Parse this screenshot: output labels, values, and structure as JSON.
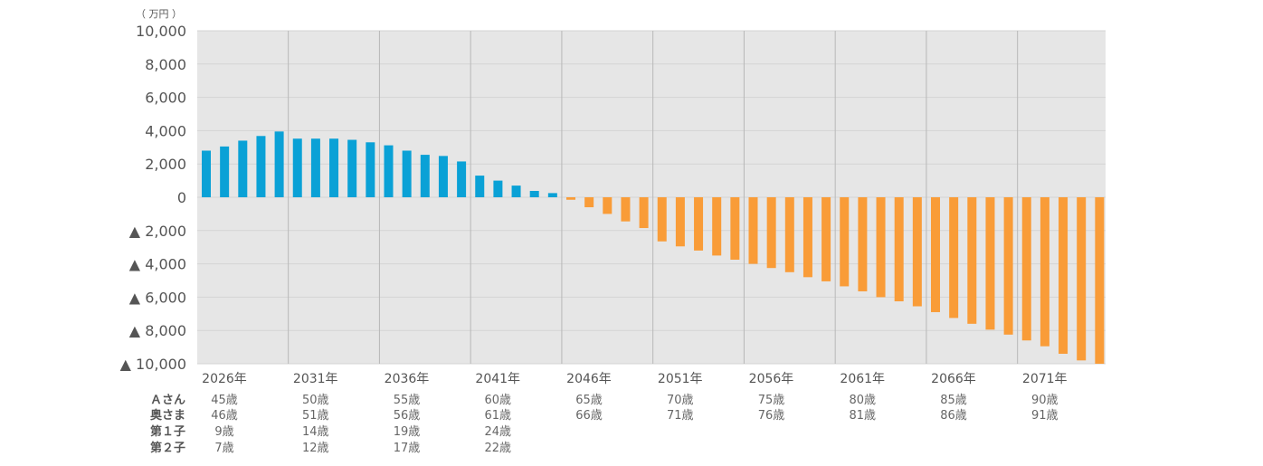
{
  "chart_data": {
    "type": "bar",
    "unit_label": "（ 万円 ）",
    "ylim": [
      -10000,
      10000
    ],
    "y_ticks": [
      {
        "value": 10000,
        "label": "10,000"
      },
      {
        "value": 8000,
        "label": "8,000"
      },
      {
        "value": 6000,
        "label": "6,000"
      },
      {
        "value": 4000,
        "label": "4,000"
      },
      {
        "value": 2000,
        "label": "2,000"
      },
      {
        "value": 0,
        "label": "0"
      },
      {
        "value": -2000,
        "label": "▲ 2,000"
      },
      {
        "value": -4000,
        "label": "▲ 4,000"
      },
      {
        "value": -6000,
        "label": "▲ 6,000"
      },
      {
        "value": -8000,
        "label": "▲ 8,000"
      },
      {
        "value": -10000,
        "label": "▲ 10,000"
      }
    ],
    "years": [
      2026,
      2027,
      2028,
      2029,
      2030,
      2031,
      2032,
      2033,
      2034,
      2035,
      2036,
      2037,
      2038,
      2039,
      2040,
      2041,
      2042,
      2043,
      2044,
      2045,
      2046,
      2047,
      2048,
      2049,
      2050,
      2051,
      2052,
      2053,
      2054,
      2055,
      2056,
      2057,
      2058,
      2059,
      2060,
      2061,
      2062,
      2063,
      2064,
      2065,
      2066,
      2067,
      2068,
      2069,
      2070,
      2071,
      2072,
      2073,
      2074,
      2075
    ],
    "values": [
      2800,
      3050,
      3400,
      3680,
      3950,
      3520,
      3520,
      3520,
      3450,
      3300,
      3120,
      2800,
      2550,
      2480,
      2150,
      1300,
      1000,
      700,
      380,
      250,
      -150,
      -600,
      -1000,
      -1450,
      -1850,
      -2650,
      -2950,
      -3200,
      -3500,
      -3750,
      -4000,
      -4250,
      -4500,
      -4800,
      -5050,
      -5350,
      -5650,
      -6000,
      -6250,
      -6550,
      -6900,
      -7250,
      -7600,
      -7950,
      -8250,
      -8600,
      -8950,
      -9400,
      -9800,
      -10000
    ],
    "x_tick_labels": [
      {
        "year": 2026,
        "label": "2026年"
      },
      {
        "year": 2031,
        "label": "2031年"
      },
      {
        "year": 2036,
        "label": "2036年"
      },
      {
        "year": 2041,
        "label": "2041年"
      },
      {
        "year": 2046,
        "label": "2046年"
      },
      {
        "year": 2051,
        "label": "2051年"
      },
      {
        "year": 2056,
        "label": "2056年"
      },
      {
        "year": 2061,
        "label": "2061年"
      },
      {
        "year": 2066,
        "label": "2066年"
      },
      {
        "year": 2071,
        "label": "2071年"
      }
    ],
    "positive_color": "#0aa1d6",
    "negative_color": "#f99c38",
    "plot_background": "#e6e6e6",
    "grid": true,
    "age_table": [
      {
        "name": "Ａさん",
        "ages": [
          "45歳",
          "50歳",
          "55歳",
          "60歳",
          "65歳",
          "70歳",
          "75歳",
          "80歳",
          "85歳",
          "90歳"
        ]
      },
      {
        "name": "奥さま",
        "ages": [
          "46歳",
          "51歳",
          "56歳",
          "61歳",
          "66歳",
          "71歳",
          "76歳",
          "81歳",
          "86歳",
          "91歳"
        ]
      },
      {
        "name": "第１子",
        "ages": [
          "9歳",
          "14歳",
          "19歳",
          "24歳",
          "",
          "",
          "",
          "",
          "",
          ""
        ]
      },
      {
        "name": "第２子",
        "ages": [
          "7歳",
          "12歳",
          "17歳",
          "22歳",
          "",
          "",
          "",
          "",
          "",
          ""
        ]
      }
    ]
  }
}
